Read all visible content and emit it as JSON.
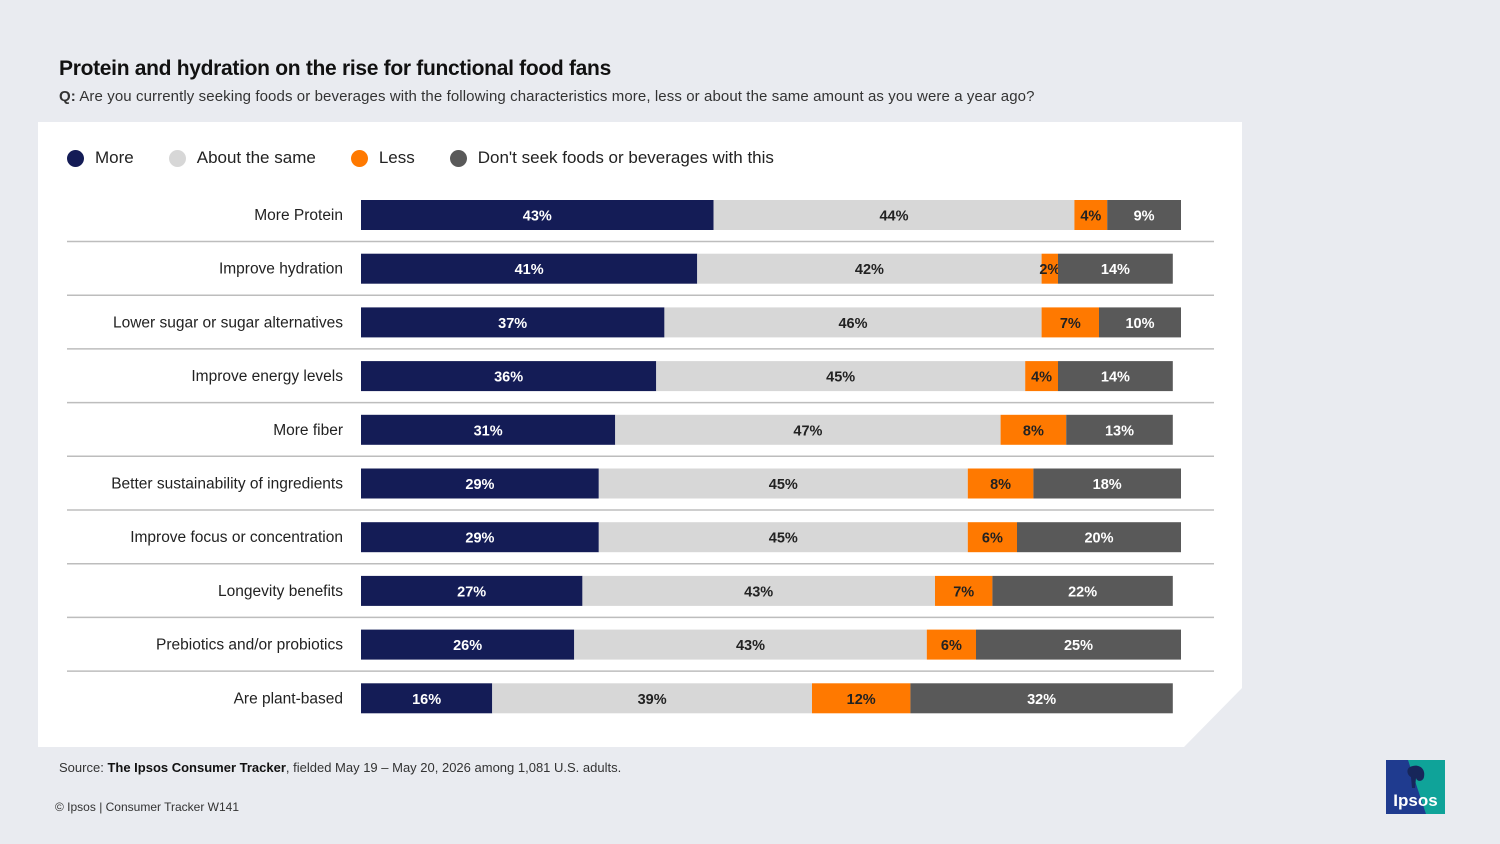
{
  "header": {
    "title": "Protein and hydration on the rise for functional food fans",
    "question_prefix": "Q:",
    "question": "Are you currently seeking foods or beverages with the following characteristics more, less or about the same amount as you were a year ago?"
  },
  "legend": [
    {
      "label": "More",
      "color": "#141c56"
    },
    {
      "label": "About the same",
      "color": "#d7d7d7"
    },
    {
      "label": "Less",
      "color": "#ff7900"
    },
    {
      "label": "Don't seek foods or beverages with this",
      "color": "#595959"
    }
  ],
  "chart_data": {
    "type": "bar",
    "orientation": "horizontal",
    "stacked": true,
    "xlim": [
      0,
      100
    ],
    "title": "Protein and hydration on the rise for functional food fans",
    "categories": [
      "More Protein",
      "Improve hydration",
      "Lower sugar or sugar alternatives",
      "Improve energy levels",
      "More fiber",
      "Better sustainability of ingredients",
      "Improve focus or concentration",
      "Longevity benefits",
      "Prebiotics and/or probiotics",
      "Are plant-based"
    ],
    "series": [
      {
        "name": "More",
        "color": "#141c56",
        "label_color": "#ffffff",
        "values": [
          43,
          41,
          37,
          36,
          31,
          29,
          29,
          27,
          26,
          16
        ]
      },
      {
        "name": "About the same",
        "color": "#d7d7d7",
        "label_color": "#222222",
        "values": [
          44,
          42,
          46,
          45,
          47,
          45,
          45,
          43,
          43,
          39
        ]
      },
      {
        "name": "Less",
        "color": "#ff7900",
        "label_color": "#222222",
        "values": [
          4,
          2,
          7,
          4,
          8,
          8,
          6,
          7,
          6,
          12
        ]
      },
      {
        "name": "Don't seek foods or beverages with this",
        "color": "#595959",
        "label_color": "#ffffff",
        "values": [
          9,
          14,
          10,
          14,
          13,
          18,
          20,
          22,
          25,
          32
        ]
      }
    ],
    "value_suffix": "%",
    "legend_position": "top-left",
    "grid": false
  },
  "footer": {
    "source_prefix": "Source:",
    "source_bold": "The Ipsos Consumer Tracker",
    "source_rest": ", fielded May 19 – May 20, 2026 among 1,081 U.S. adults.",
    "copyright": "© Ipsos | Consumer Tracker W141"
  },
  "logo": {
    "text": "Ipsos",
    "color_dark": "#1f3b8f",
    "color_teal": "#0fa399",
    "icon": "ipsos-logo"
  }
}
